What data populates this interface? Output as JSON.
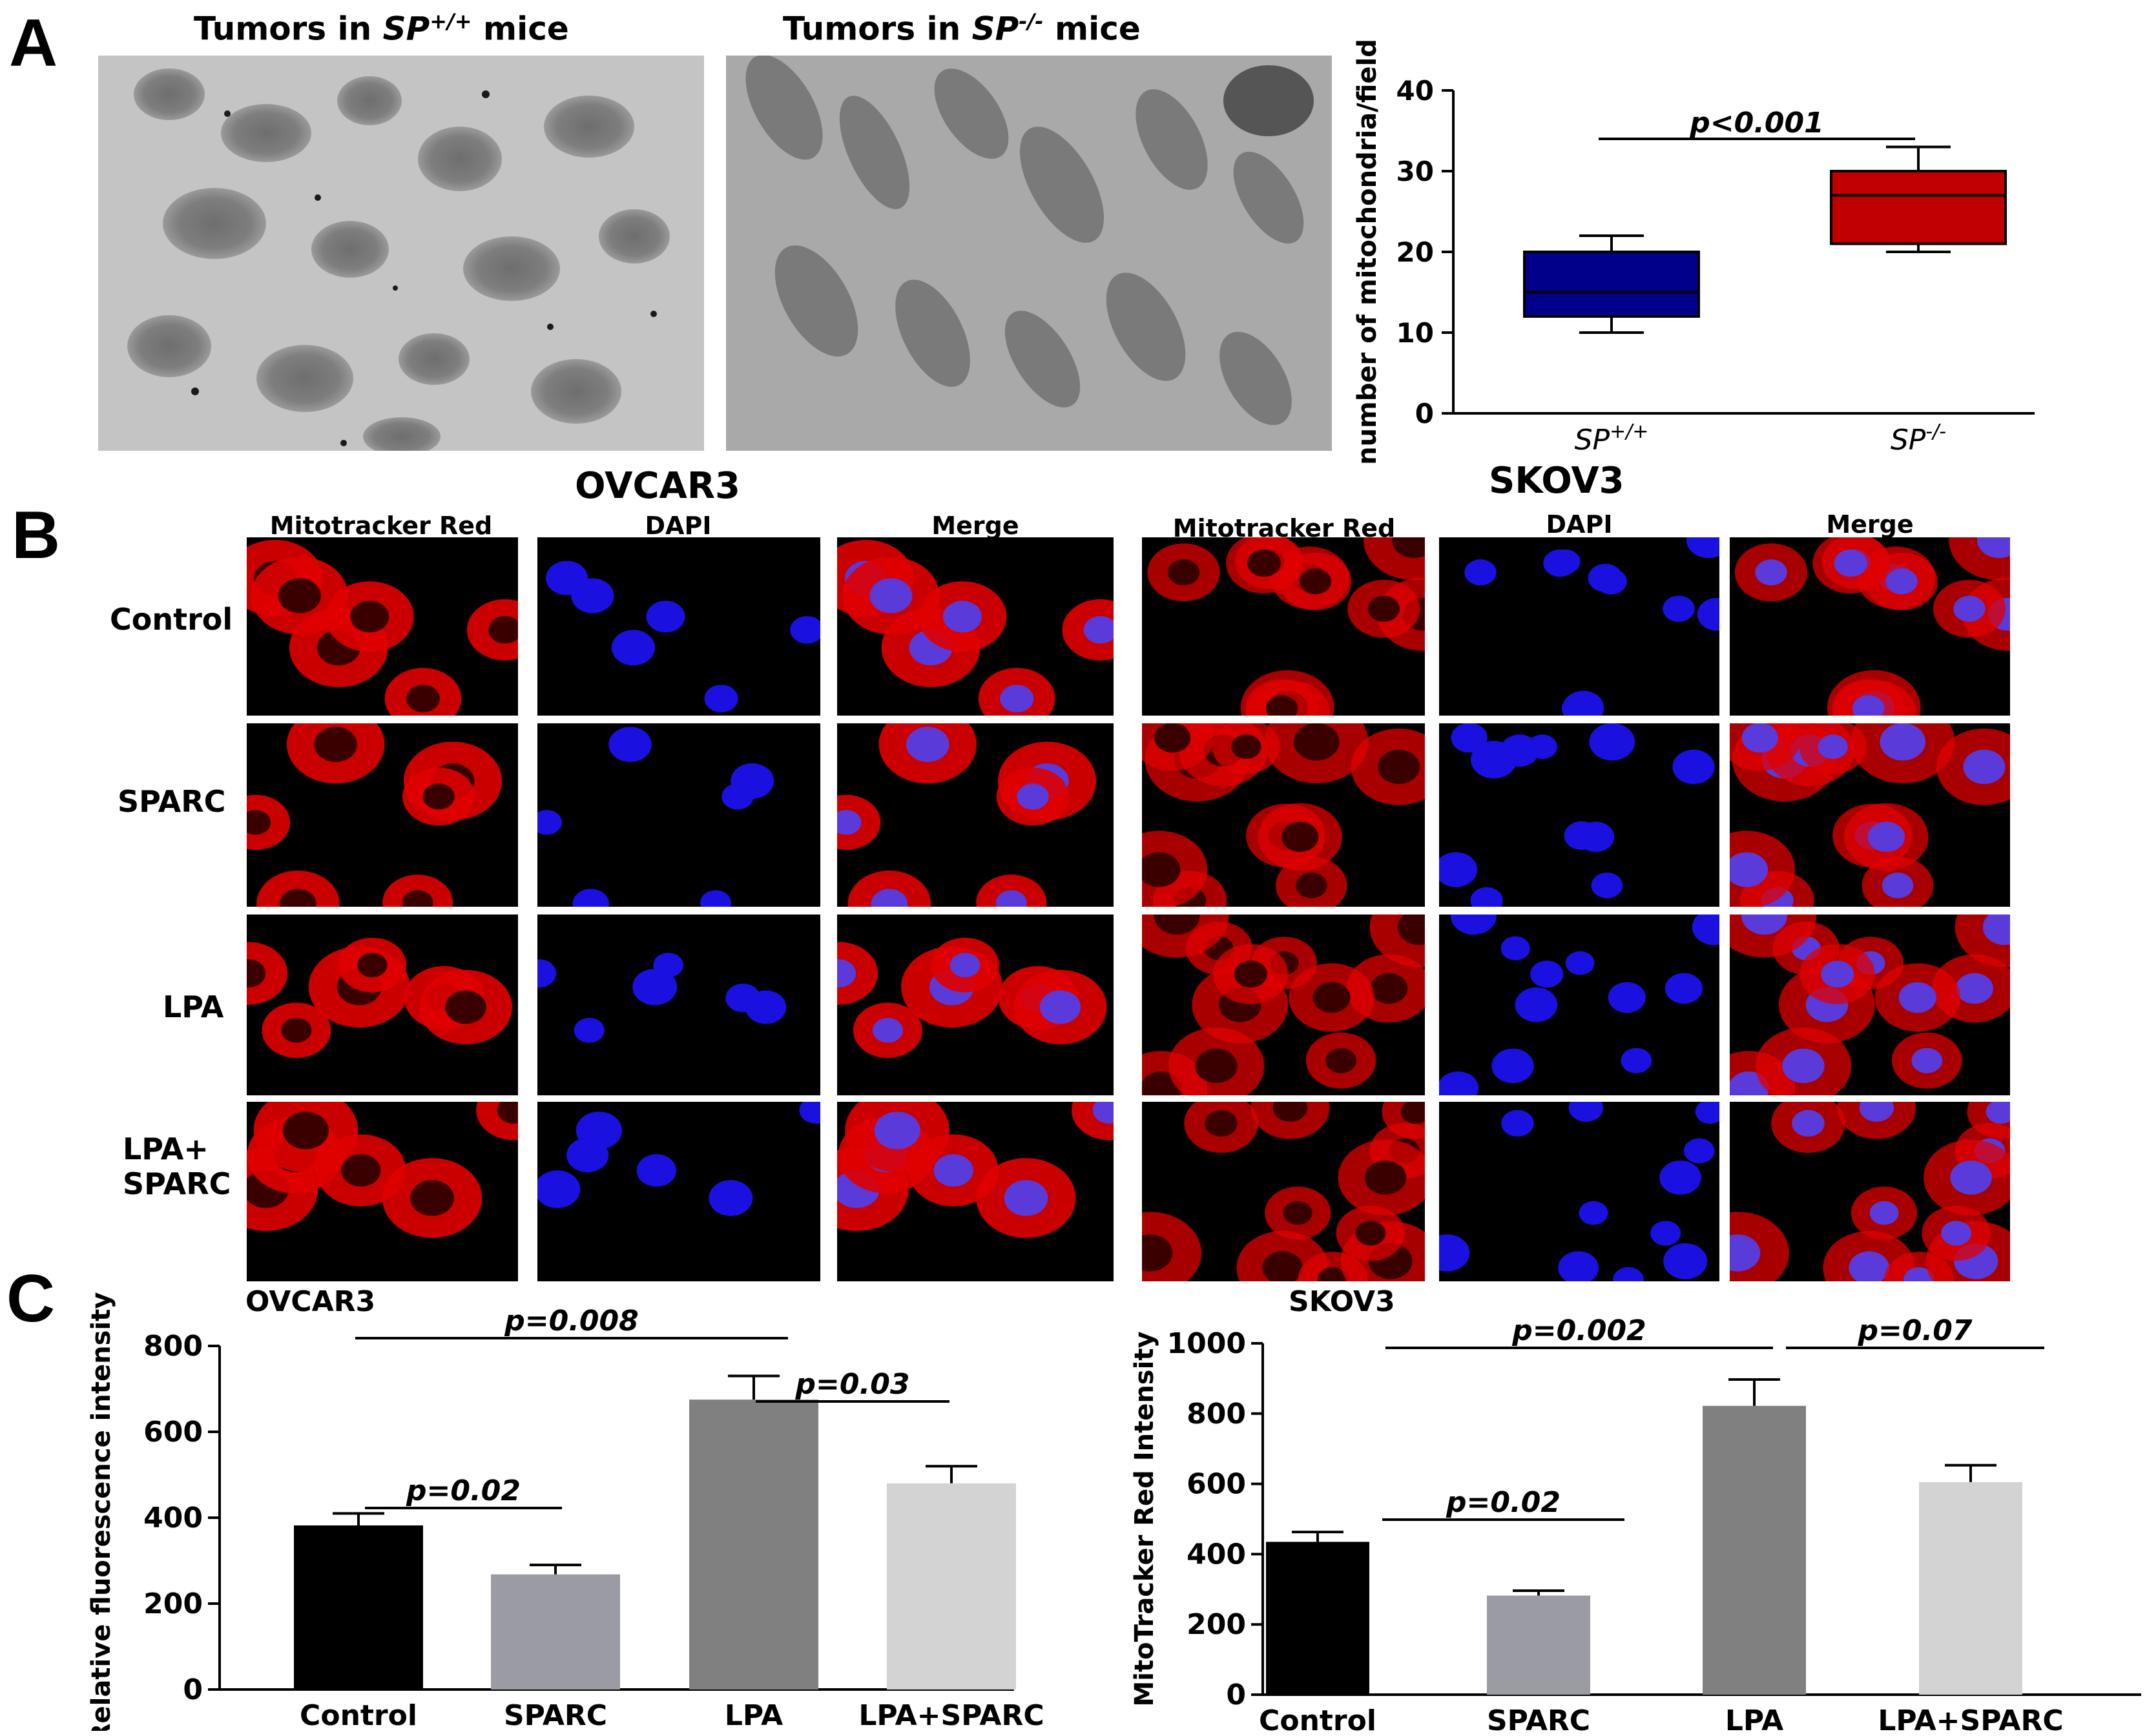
{
  "panels": {
    "a": {
      "letter": "A",
      "images": [
        {
          "pre": "Tumors in ",
          "geno": "SP",
          "sup": "+/+",
          "post": " mice"
        },
        {
          "pre": "Tumors in ",
          "geno": "SP",
          "sup": "-/-",
          "post": " mice"
        }
      ]
    },
    "b": {
      "letter": "B",
      "groups": [
        "OVCAR3",
        "SKOV3"
      ],
      "columns": [
        "Mitotracker Red",
        "DAPI",
        "Merge",
        "Mitotracker Red",
        "DAPI",
        "Merge"
      ],
      "rows": [
        "Control",
        "SPARC",
        "LPA",
        "LPA+\nSPARC"
      ]
    },
    "c": {
      "letter": "C"
    }
  },
  "colors": {
    "red": "#e00000",
    "blue": "#1a10e0",
    "navy": "#00008b",
    "darkred": "#c00000"
  },
  "chart_data": [
    {
      "type": "box",
      "panel": "A",
      "categories": [
        "SP+/+",
        "SP-/-"
      ],
      "category_labels": [
        {
          "base": "SP",
          "sup": "+/+"
        },
        {
          "base": "SP",
          "sup": "-/-"
        }
      ],
      "boxes": [
        {
          "min": 10,
          "q1": 12,
          "median": 15,
          "q3": 20,
          "max": 22,
          "color": "#00008b"
        },
        {
          "min": 20,
          "q1": 21,
          "median": 27,
          "q3": 30,
          "max": 33,
          "color": "#c00000"
        }
      ],
      "ylabel": "number of mitochondria/field",
      "ylim": [
        0,
        40
      ],
      "yticks": [
        0,
        10,
        20,
        30,
        40
      ],
      "annotations": [
        {
          "text": "p<0.001",
          "between": [
            0,
            1
          ]
        }
      ]
    },
    {
      "type": "bar",
      "panel": "C",
      "title": "OVCAR3",
      "categories": [
        "Control",
        "SPARC",
        "LPA",
        "LPA+SPARC"
      ],
      "values": [
        382,
        268,
        675,
        480
      ],
      "errors": [
        28,
        22,
        55,
        40
      ],
      "bar_colors": [
        "#000000",
        "#9b9ba3",
        "#808080",
        "#d3d3d3"
      ],
      "ylabel": "Relative fluorescence intensity",
      "ylim": [
        0,
        800
      ],
      "yticks": [
        0,
        200,
        400,
        600,
        800
      ],
      "annotations": [
        {
          "text": "p=0.008",
          "between": [
            0,
            2
          ]
        },
        {
          "text": "p=0.02",
          "between": [
            0,
            1
          ]
        },
        {
          "text": "p=0.03",
          "between": [
            2,
            3
          ]
        }
      ]
    },
    {
      "type": "bar",
      "panel": "C",
      "title": "SKOV3",
      "categories": [
        "Control",
        "SPARC",
        "LPA",
        "LPA+SPARC"
      ],
      "values": [
        435,
        282,
        822,
        605
      ],
      "errors": [
        28,
        14,
        75,
        48
      ],
      "bar_colors": [
        "#000000",
        "#9b9ba3",
        "#808080",
        "#d3d3d3"
      ],
      "ylabel": "MitoTracker Red Intensity",
      "ylim": [
        0,
        1000
      ],
      "yticks": [
        0,
        200,
        400,
        600,
        800,
        1000
      ],
      "annotations": [
        {
          "text": "p=0.002",
          "between": [
            0,
            2
          ]
        },
        {
          "text": "p=0.02",
          "between": [
            0,
            1
          ]
        },
        {
          "text": "p=0.07",
          "between": [
            2,
            3
          ]
        }
      ]
    }
  ]
}
